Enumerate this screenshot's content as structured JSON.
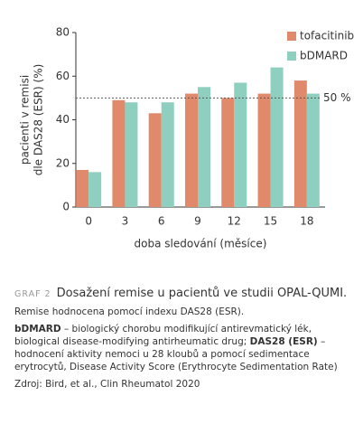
{
  "chart_data": {
    "type": "bar",
    "ylabel": [
      "pacienti v remisi",
      "dle DAS28 (ESR) (%)"
    ],
    "xlabel": "doba sledování (měsíce)",
    "categories": [
      "0",
      "3",
      "6",
      "9",
      "12",
      "15",
      "18"
    ],
    "series": [
      {
        "name": "tofacitinib",
        "color": "#e0896b",
        "values": [
          17,
          49,
          43,
          52,
          50,
          52,
          58
        ]
      },
      {
        "name": "bDMARD",
        "color": "#8ecfbf",
        "values": [
          16,
          48,
          48,
          55,
          57,
          64,
          52
        ]
      }
    ],
    "ylim": [
      0,
      80
    ],
    "yticks": [
      0,
      20,
      40,
      60,
      80
    ],
    "grid": false,
    "reference_line": {
      "value": 50,
      "label": "50 %"
    },
    "legend": "top-right"
  },
  "caption": {
    "label": "GRAF 2",
    "title": "Dosažení remise u pacientů ve studii OPAL-QUMI.",
    "subtitle": "Remise hodnocena pomocí indexu DAS28 (ESR).",
    "definitions": [
      {
        "term": "bDMARD",
        "text": " – biologický chorobu modifikující antirevmatický lék, biological disease-modifying antirheumatic drug; "
      },
      {
        "term": "DAS28 (ESR)",
        "text": " – hodnocení aktivity nemoci u 28 kloubů a pomocí sedimentace erytrocytů, Disease Activity Score (Erythrocyte Sedimentation Rate)"
      }
    ],
    "source": "Zdroj: Bird, et al., Clin Rheumatol 2020"
  }
}
